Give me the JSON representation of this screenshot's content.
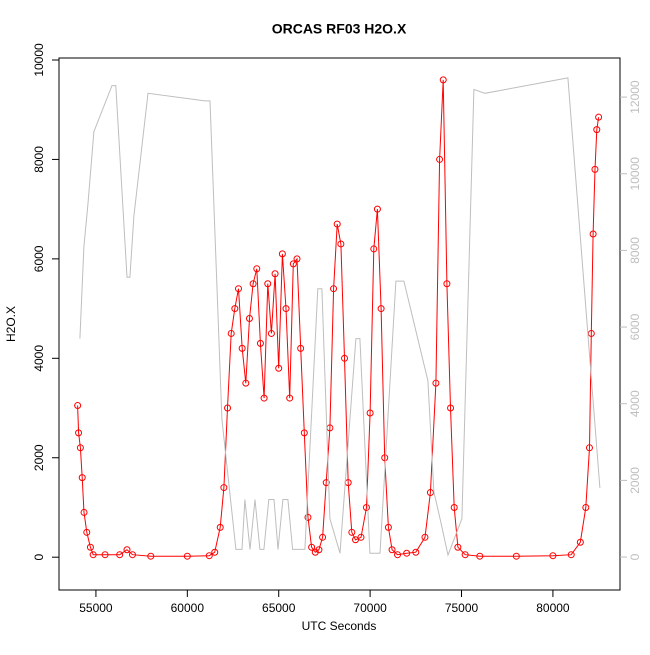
{
  "chart_data": {
    "type": "scatter",
    "title": "ORCAS RF03 H2O.X",
    "x_label": "UTC Seconds",
    "y_label": "H2O.X",
    "xlim": [
      52980,
      83670
    ],
    "xticks": [
      55000,
      60000,
      65000,
      70000,
      75000,
      80000
    ],
    "ylim": [
      -660,
      10040
    ],
    "yticks": [
      0,
      2000,
      4000,
      6000,
      8000,
      10000
    ],
    "y2lim": [
      -860,
      13020
    ],
    "y2ticks": [
      0,
      2000,
      4000,
      6000,
      8000,
      10000,
      12000
    ],
    "series": [
      {
        "color": "#ff0000",
        "marker": "circle",
        "x": [
          54000,
          54050,
          54150,
          54250,
          54350,
          54500,
          54700,
          54850,
          55500,
          56300,
          56700,
          57000,
          58000,
          60000,
          61200,
          61500,
          61800,
          62000,
          62200,
          62400,
          62600,
          62800,
          63000,
          63200,
          63400,
          63600,
          63800,
          64000,
          64200,
          64400,
          64600,
          64800,
          65000,
          65200,
          65400,
          65600,
          65800,
          66000,
          66200,
          66400,
          66600,
          66800,
          67000,
          67200,
          67400,
          67600,
          67800,
          68000,
          68200,
          68400,
          68600,
          68800,
          69000,
          69200,
          69500,
          69800,
          70000,
          70200,
          70400,
          70600,
          70800,
          71000,
          71200,
          71500,
          72000,
          72500,
          73000,
          73300,
          73600,
          73800,
          74000,
          74200,
          74400,
          74600,
          74800,
          75200,
          76000,
          78000,
          80000,
          81000,
          81500,
          81800,
          82000,
          82100,
          82200,
          82300,
          82400,
          82500
        ],
        "values": [
          3050,
          2500,
          2200,
          1600,
          900,
          500,
          200,
          50,
          50,
          50,
          150,
          50,
          20,
          20,
          30,
          100,
          600,
          1400,
          3000,
          4500,
          5000,
          5400,
          4200,
          3500,
          4800,
          5500,
          5800,
          4300,
          3200,
          5500,
          4500,
          5700,
          3800,
          6100,
          5000,
          3200,
          5900,
          6000,
          4200,
          2500,
          800,
          200,
          100,
          150,
          400,
          1500,
          2600,
          5400,
          6700,
          6300,
          4000,
          1500,
          500,
          350,
          400,
          1000,
          2900,
          6200,
          7000,
          5000,
          2000,
          600,
          150,
          50,
          80,
          100,
          400,
          1300,
          3500,
          8000,
          9600,
          5500,
          3000,
          1000,
          200,
          50,
          20,
          20,
          30,
          50,
          300,
          1000,
          2200,
          4500,
          6500,
          7800,
          8600,
          8850
        ]
      },
      {
        "color": "#bebebe",
        "axis": "y2",
        "x": [
          54125,
          54340,
          54560,
          54890,
          55880,
          56090,
          56700,
          56860,
          57080,
          57850,
          60960,
          61240,
          61890,
          62660,
          62990,
          63150,
          63430,
          63700,
          63970,
          64190,
          64460,
          64740,
          64960,
          65230,
          65500,
          65760,
          66160,
          66430,
          67140,
          67360,
          67800,
          68350,
          69220,
          69440,
          69990,
          70540,
          71410,
          71850,
          73160,
          73490,
          73870,
          74260,
          75020,
          75680,
          76280,
          80820,
          82570
        ],
        "values": [
          5700,
          8100,
          9200,
          11100,
          12300,
          12300,
          7300,
          7300,
          8900,
          12100,
          11900,
          11900,
          3600,
          200,
          200,
          1500,
          200,
          1500,
          200,
          200,
          1500,
          1500,
          200,
          1500,
          1500,
          200,
          200,
          200,
          7000,
          7000,
          1000,
          100,
          5700,
          5700,
          100,
          100,
          7200,
          7200,
          4600,
          1700,
          900,
          50,
          1000,
          12200,
          12100,
          12500,
          1800
        ]
      }
    ]
  }
}
